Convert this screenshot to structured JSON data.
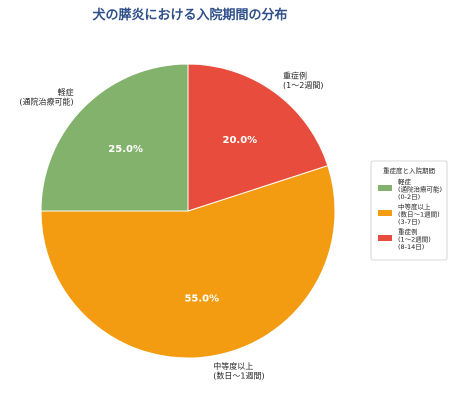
{
  "chart_data": {
    "type": "pie",
    "title": "犬の膵炎における入院期間の分布",
    "slices": [
      {
        "label_lines": [
          "軽症",
          "(通院治療可能)"
        ],
        "value": 25.0,
        "pct_label": "25.0%",
        "color": "#82b26c"
      },
      {
        "label_lines": [
          "中等度以上",
          "(数日〜1週間)"
        ],
        "value": 55.0,
        "pct_label": "55.0%",
        "color": "#f39c12"
      },
      {
        "label_lines": [
          "重症例",
          "(1〜2週間)"
        ],
        "value": 20.0,
        "pct_label": "20.0%",
        "color": "#e74c3c"
      }
    ],
    "legend": {
      "title": "重症度と入院期間",
      "placement": "right",
      "entries": [
        {
          "lines": [
            "軽症",
            "(通院治療可能)",
            "(0-2日)"
          ],
          "color": "#82b26c"
        },
        {
          "lines": [
            "中等度以上",
            "(数日〜1週間)",
            "(3-7日)"
          ],
          "color": "#f39c12"
        },
        {
          "lines": [
            "重症例",
            "(1〜2週間)",
            "(8-14日)"
          ],
          "color": "#e74c3c"
        }
      ]
    }
  }
}
